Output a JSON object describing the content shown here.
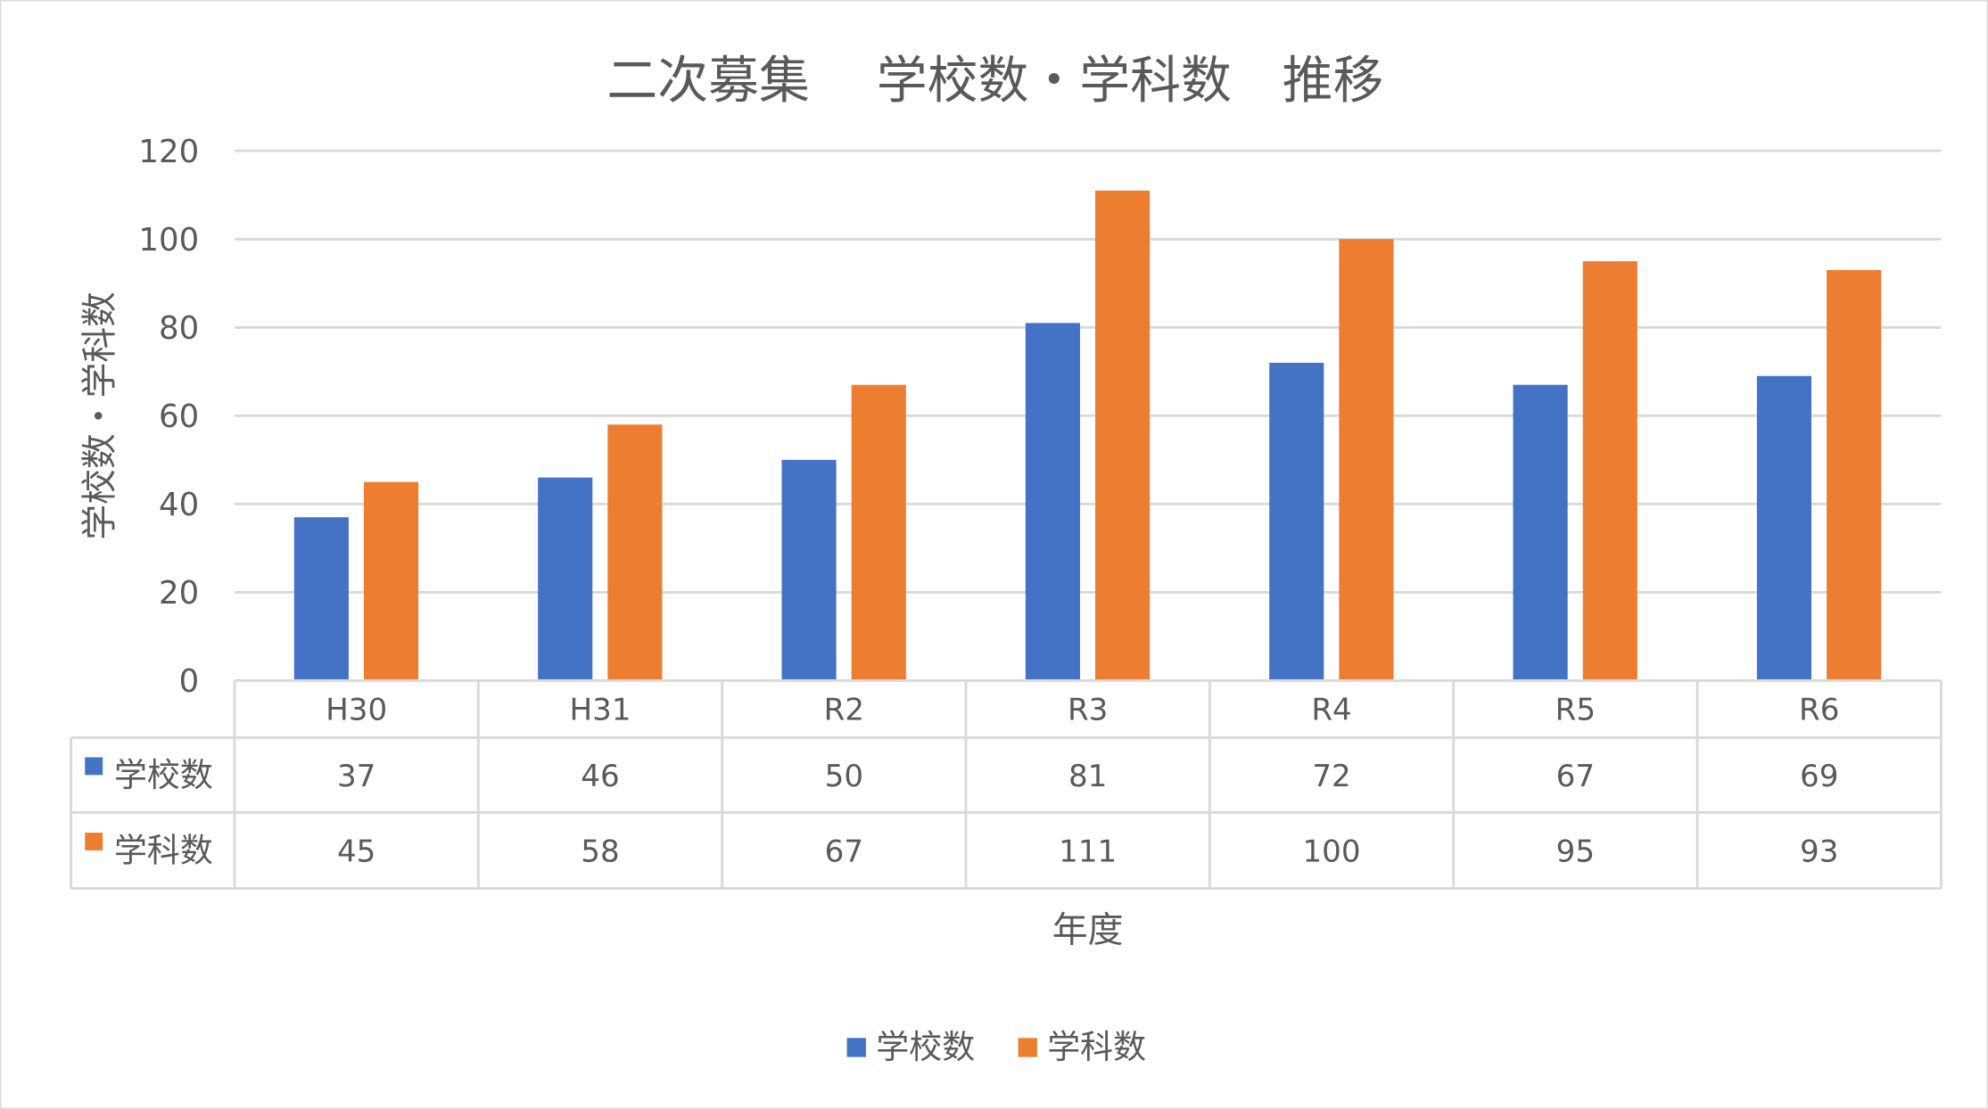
{
  "chart_data": {
    "type": "bar",
    "title": "二次募集　 学校数・学科数　推移",
    "xlabel": "年度",
    "ylabel": "学校数・学科数",
    "ylim": [
      0,
      120
    ],
    "yticks": [
      "0",
      "20",
      "40",
      "60",
      "80",
      "100",
      "120"
    ],
    "grid": true,
    "legend_position": "bottom",
    "categories": [
      "H30",
      "H31",
      "R2",
      "R3",
      "R4",
      "R5",
      "R6"
    ],
    "series": [
      {
        "name": "学校数",
        "color": "#4472C4",
        "values": [
          37,
          46,
          50,
          81,
          72,
          67,
          69
        ]
      },
      {
        "name": "学科数",
        "color": "#ED7D31",
        "values": [
          45,
          58,
          67,
          111,
          100,
          95,
          93
        ]
      }
    ]
  }
}
